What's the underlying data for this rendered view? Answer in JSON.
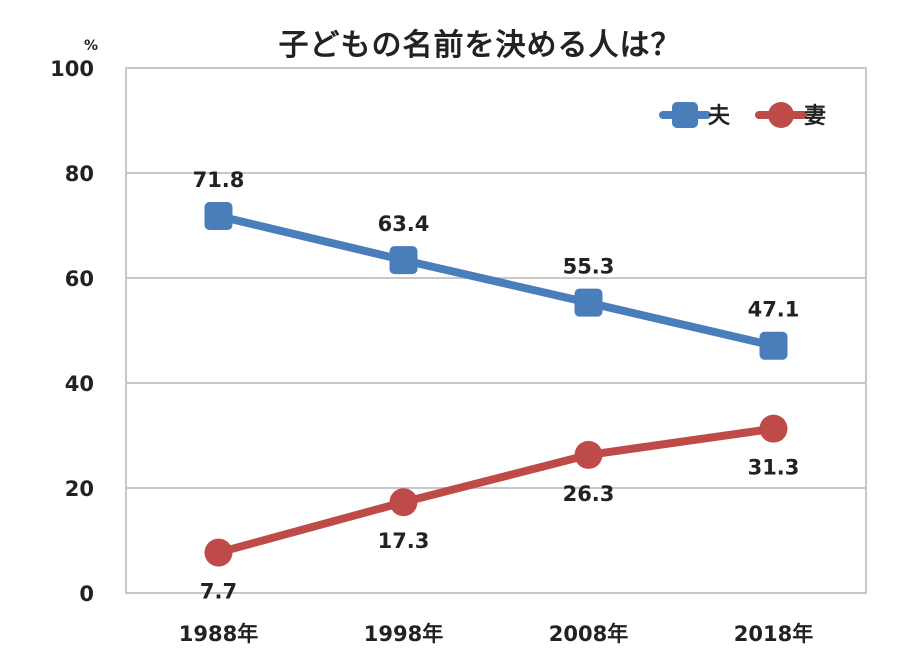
{
  "chart_data": {
    "type": "line",
    "title": "子どもの名前を決める人は？",
    "y_unit": "%",
    "xlabel": "",
    "ylabel": "",
    "ylim": [
      0,
      100
    ],
    "y_ticks": [
      0,
      20,
      40,
      60,
      80,
      100
    ],
    "grid": true,
    "legend_position": "top-right",
    "categories": [
      "1988年",
      "1998年",
      "2008年",
      "2018年"
    ],
    "series": [
      {
        "name": "夫",
        "color": "#4a7ebb",
        "marker": "square",
        "label_position": "above",
        "values": [
          71.8,
          63.4,
          55.3,
          47.1
        ]
      },
      {
        "name": "妻",
        "color": "#be4b48",
        "marker": "circle",
        "label_position": "below",
        "values": [
          7.7,
          17.3,
          26.3,
          31.3
        ]
      }
    ]
  }
}
